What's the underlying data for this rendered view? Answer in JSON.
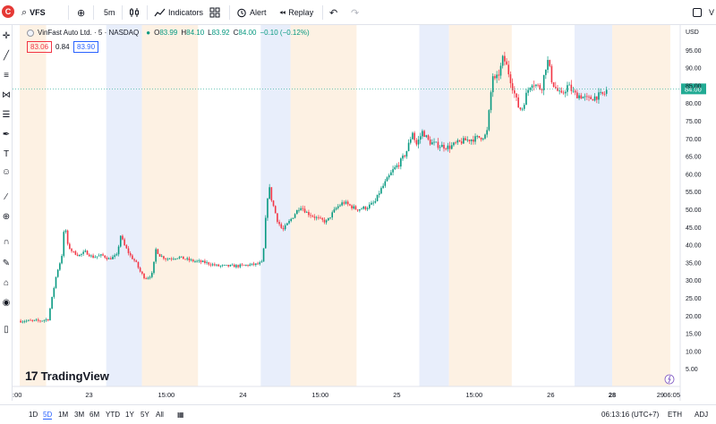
{
  "toolbar": {
    "avatar_letter": "C",
    "symbol": "VFS",
    "interval": "5m",
    "indicators_label": "Indicators",
    "alert_label": "Alert",
    "replay_label": "Replay",
    "edge_letter": "V"
  },
  "legend": {
    "title": "VinFast Auto Ltd. · 5 · NASDAQ",
    "open_label": "O",
    "open_value": "83.99",
    "high_label": "H",
    "high_value": "84.10",
    "low_label": "L",
    "low_value": "83.92",
    "close_label": "C",
    "close_value": "84.00",
    "change": "−0.10 (−0.12%)",
    "sell_price": "83.06",
    "spread": "0.84",
    "buy_price": "83.90"
  },
  "brand": {
    "logo": "17",
    "name": "TradingView"
  },
  "bottom": {
    "ranges": [
      "1D",
      "5D",
      "1M",
      "3M",
      "6M",
      "YTD",
      "1Y",
      "5Y",
      "All"
    ],
    "active_range": "5D",
    "time": "06:13:16 (UTC+7)",
    "session": "ETH",
    "adj": "ADJ"
  },
  "colors": {
    "up": "#089981",
    "down": "#f23645",
    "accent": "#2962ff",
    "pre_market_band": "#fdf1e3",
    "post_market_band": "#e8eefb",
    "last_price_label": "#22ab94"
  },
  "chart_data": {
    "type": "candlestick",
    "currency": "USD",
    "ylim": [
      0,
      100
    ],
    "y_ticks": [
      5,
      10,
      15,
      20,
      25,
      30,
      35,
      40,
      45,
      50,
      55,
      60,
      65,
      70,
      75,
      80,
      85,
      90,
      95
    ],
    "y_tick_labels": [
      "5.00",
      "10.00",
      "15.00",
      "20.00",
      "25.00",
      "30.00",
      "35.00",
      "40.00",
      "45.00",
      "50.00",
      "55.00",
      "60.00",
      "65.00",
      "70.00",
      "75.00",
      "80.00",
      "85.00",
      "90.00",
      "95.00"
    ],
    "x_tick_labels": [
      ":00",
      "23",
      "15:00",
      "24",
      "15:00",
      "25",
      "15:00",
      "26",
      "28",
      "29",
      "06:05"
    ],
    "x_tick_positions": [
      0,
      0.105,
      0.222,
      0.338,
      0.455,
      0.571,
      0.688,
      0.804,
      0.897,
      0.97,
      1.0
    ],
    "last_price": 84.0,
    "last_price_label": "84.00",
    "sessions": [
      {
        "type": "pre",
        "from": 0.0,
        "to": 0.04
      },
      {
        "type": "post",
        "from": 0.131,
        "to": 0.185
      },
      {
        "type": "pre",
        "from": 0.185,
        "to": 0.27
      },
      {
        "type": "post",
        "from": 0.365,
        "to": 0.41
      },
      {
        "type": "pre",
        "from": 0.41,
        "to": 0.51
      },
      {
        "type": "post",
        "from": 0.605,
        "to": 0.65
      },
      {
        "type": "pre",
        "from": 0.65,
        "to": 0.745
      },
      {
        "type": "post",
        "from": 0.84,
        "to": 0.897
      },
      {
        "type": "pre",
        "from": 0.897,
        "to": 0.985
      }
    ],
    "price_path": [
      [
        0.0,
        18.5
      ],
      [
        0.03,
        18.5
      ],
      [
        0.043,
        19
      ],
      [
        0.05,
        26
      ],
      [
        0.056,
        32
      ],
      [
        0.061,
        35
      ],
      [
        0.065,
        38
      ],
      [
        0.068,
        47
      ],
      [
        0.072,
        40
      ],
      [
        0.08,
        38
      ],
      [
        0.09,
        37
      ],
      [
        0.1,
        38
      ],
      [
        0.11,
        36.5
      ],
      [
        0.125,
        37
      ],
      [
        0.135,
        36
      ],
      [
        0.148,
        37
      ],
      [
        0.152,
        43
      ],
      [
        0.158,
        40
      ],
      [
        0.167,
        37
      ],
      [
        0.176,
        35
      ],
      [
        0.182,
        32.5
      ],
      [
        0.19,
        30.5
      ],
      [
        0.196,
        31
      ],
      [
        0.202,
        32
      ],
      [
        0.205,
        39
      ],
      [
        0.212,
        37
      ],
      [
        0.222,
        36
      ],
      [
        0.24,
        36.5
      ],
      [
        0.26,
        35.5
      ],
      [
        0.28,
        35
      ],
      [
        0.3,
        34
      ],
      [
        0.33,
        34
      ],
      [
        0.36,
        34.5
      ],
      [
        0.368,
        35
      ],
      [
        0.373,
        49
      ],
      [
        0.377,
        57
      ],
      [
        0.381,
        53
      ],
      [
        0.39,
        47
      ],
      [
        0.398,
        44
      ],
      [
        0.41,
        47
      ],
      [
        0.425,
        51
      ],
      [
        0.435,
        49
      ],
      [
        0.445,
        48
      ],
      [
        0.455,
        47
      ],
      [
        0.465,
        46.5
      ],
      [
        0.47,
        48
      ],
      [
        0.48,
        50.5
      ],
      [
        0.49,
        52
      ],
      [
        0.51,
        50
      ],
      [
        0.525,
        50.5
      ],
      [
        0.538,
        52
      ],
      [
        0.545,
        55
      ],
      [
        0.555,
        58
      ],
      [
        0.565,
        61
      ],
      [
        0.575,
        63
      ],
      [
        0.585,
        66
      ],
      [
        0.595,
        72
      ],
      [
        0.6,
        68
      ],
      [
        0.61,
        72
      ],
      [
        0.62,
        69
      ],
      [
        0.635,
        68
      ],
      [
        0.65,
        67.5
      ],
      [
        0.66,
        68.5
      ],
      [
        0.675,
        69.5
      ],
      [
        0.69,
        70
      ],
      [
        0.7,
        70.5
      ],
      [
        0.707,
        71
      ],
      [
        0.712,
        80
      ],
      [
        0.716,
        88
      ],
      [
        0.72,
        86
      ],
      [
        0.727,
        89
      ],
      [
        0.732,
        93
      ],
      [
        0.738,
        90
      ],
      [
        0.744,
        86
      ],
      [
        0.75,
        82
      ],
      [
        0.755,
        79
      ],
      [
        0.76,
        78
      ],
      [
        0.768,
        83
      ],
      [
        0.775,
        86
      ],
      [
        0.782,
        85
      ],
      [
        0.79,
        84
      ],
      [
        0.796,
        90
      ],
      [
        0.8,
        92
      ],
      [
        0.806,
        86
      ],
      [
        0.812,
        84
      ],
      [
        0.82,
        82
      ],
      [
        0.83,
        85
      ],
      [
        0.84,
        82.5
      ],
      [
        0.85,
        82
      ],
      [
        0.86,
        81
      ],
      [
        0.875,
        82
      ],
      [
        0.885,
        82.5
      ],
      [
        0.89,
        84
      ]
    ]
  }
}
